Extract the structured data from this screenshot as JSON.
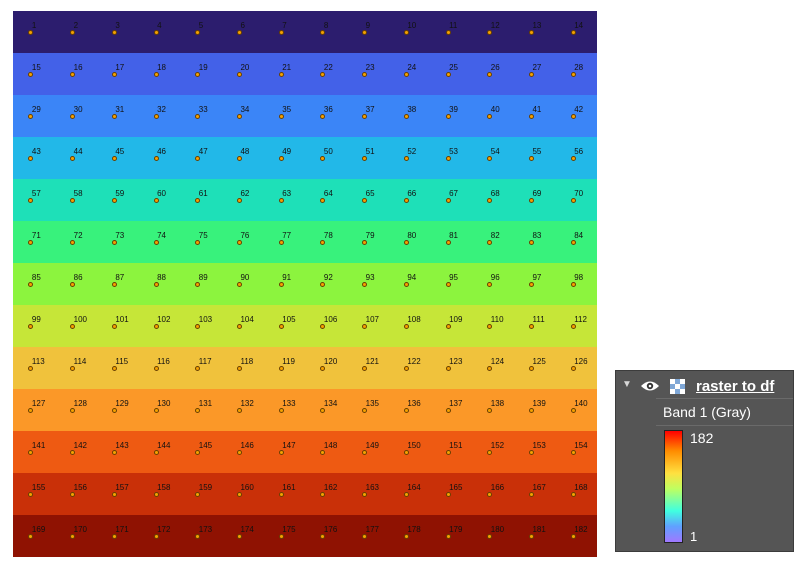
{
  "map": {
    "rows": 13,
    "cols": 14,
    "point_labels": [
      "1",
      "2",
      "3",
      "4",
      "5",
      "6",
      "7",
      "8",
      "9",
      "10",
      "11",
      "12",
      "13",
      "14",
      "15",
      "16",
      "17",
      "18",
      "19",
      "20",
      "21",
      "22",
      "23",
      "24",
      "25",
      "26",
      "27",
      "28",
      "29",
      "30",
      "31",
      "32",
      "33",
      "34",
      "35",
      "36",
      "37",
      "38",
      "39",
      "40",
      "41",
      "42",
      "43",
      "44",
      "45",
      "46",
      "47",
      "48",
      "49",
      "50",
      "51",
      "52",
      "53",
      "54",
      "55",
      "56",
      "57",
      "58",
      "59",
      "60",
      "61",
      "62",
      "63",
      "64",
      "65",
      "66",
      "67",
      "68",
      "69",
      "70",
      "71",
      "72",
      "73",
      "74",
      "75",
      "76",
      "77",
      "78",
      "79",
      "80",
      "81",
      "82",
      "83",
      "84",
      "85",
      "86",
      "87",
      "88",
      "89",
      "90",
      "91",
      "92",
      "93",
      "94",
      "95",
      "96",
      "97",
      "98",
      "99",
      "100",
      "101",
      "102",
      "103",
      "104",
      "105",
      "106",
      "107",
      "108",
      "109",
      "110",
      "111",
      "112",
      "113",
      "114",
      "115",
      "116",
      "117",
      "118",
      "119",
      "120",
      "121",
      "122",
      "123",
      "124",
      "125",
      "126",
      "127",
      "128",
      "129",
      "130",
      "131",
      "132",
      "133",
      "134",
      "135",
      "136",
      "137",
      "138",
      "139",
      "140",
      "141",
      "142",
      "143",
      "144",
      "145",
      "146",
      "147",
      "148",
      "149",
      "150",
      "151",
      "152",
      "153",
      "154",
      "155",
      "156",
      "157",
      "158",
      "159",
      "160",
      "161",
      "162",
      "163",
      "164",
      "165",
      "166",
      "167",
      "168",
      "169",
      "170",
      "171",
      "172",
      "173",
      "174",
      "175",
      "176",
      "177",
      "178",
      "179",
      "180",
      "181",
      "182"
    ],
    "row_colors": [
      "#2c1d6e",
      "#4361e8",
      "#3b85f7",
      "#22b8e8",
      "#1ee0b8",
      "#38f27c",
      "#8cf43e",
      "#c6e638",
      "#f0c23c",
      "#fb9828",
      "#ee5a12",
      "#c93008",
      "#8f1202"
    ],
    "point_color": "#f5a100"
  },
  "layers_panel": {
    "layer_name": "raster to df",
    "band_label": "Band 1 (Gray)",
    "ramp_max": "182",
    "ramp_min": "1",
    "icons": [
      "collapse-arrow-icon",
      "visibility-eye-icon",
      "raster-layer-icon"
    ]
  }
}
